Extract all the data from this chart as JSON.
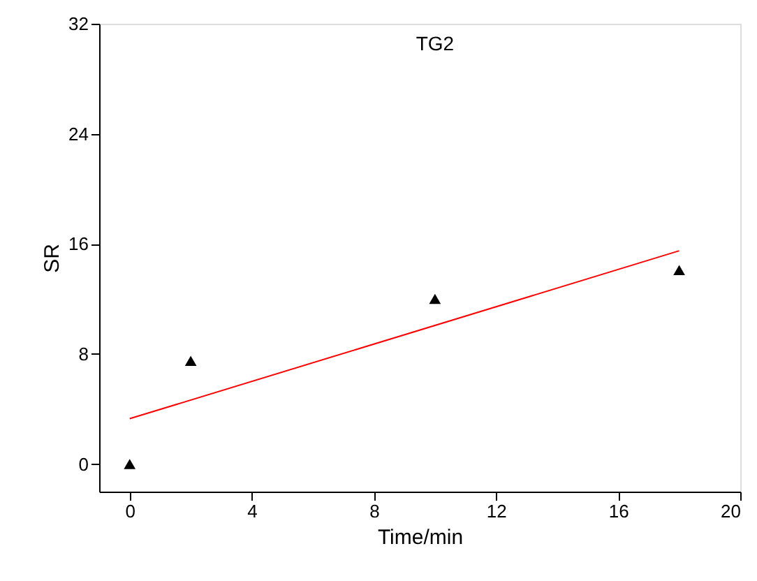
{
  "chart_data": {
    "type": "scatter",
    "title": "TG2",
    "xlabel": "Time/min",
    "ylabel": "SR",
    "xlim": [
      -1,
      20
    ],
    "xticks": [
      0,
      4,
      8,
      12,
      16,
      20
    ],
    "ylim": [
      -2,
      32
    ],
    "yticks": [
      0,
      8,
      16,
      24,
      32
    ],
    "grid": false,
    "series": [
      {
        "color": "#000000",
        "marker": "triangle",
        "x": [
          0,
          2,
          10,
          18
        ],
        "values": [
          0,
          7.5,
          12,
          14.1
        ]
      },
      {
        "type": "line",
        "color": "#ff0000",
        "marker": "none",
        "line_style": "solid",
        "x": [
          0,
          18
        ],
        "values": [
          3.3,
          15.5
        ]
      }
    ]
  }
}
